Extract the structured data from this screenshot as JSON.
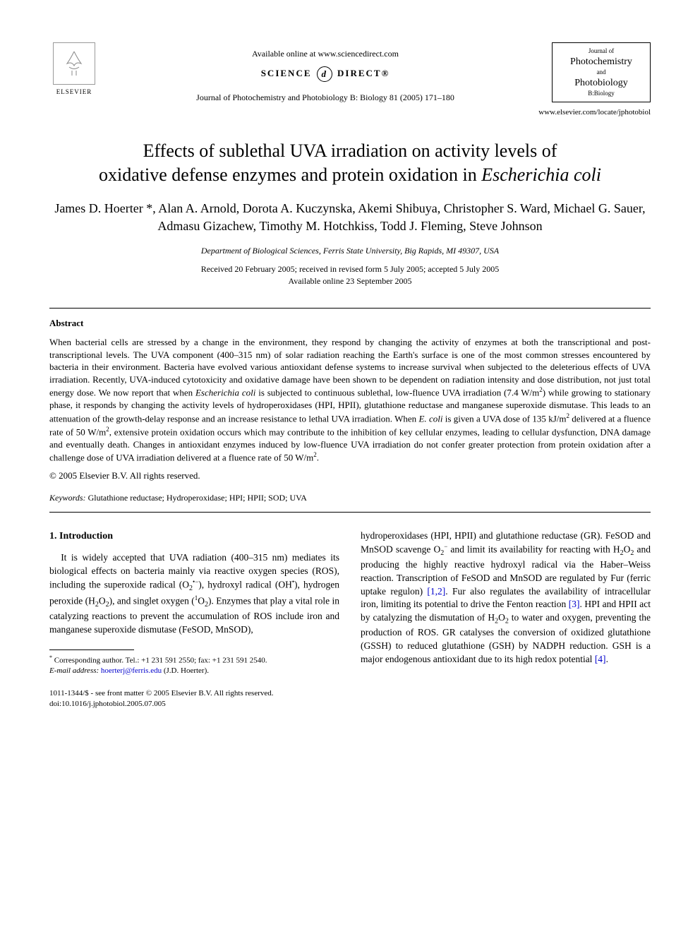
{
  "header": {
    "elsevier_label": "ELSEVIER",
    "available_online": "Available online at www.sciencedirect.com",
    "sciencedirect_left": "SCIENCE",
    "sciencedirect_right": "DIRECT®",
    "journal_reference": "Journal of Photochemistry and Photobiology B: Biology 81 (2005) 171–180",
    "journal_box": {
      "line1": "Journal of",
      "line2": "Photochemistry",
      "line3": "and",
      "line4": "Photobiology",
      "line5": "B:Biology"
    },
    "locate_url": "www.elsevier.com/locate/jphotobiol"
  },
  "title": {
    "line1": "Effects of sublethal UVA irradiation on activity levels of",
    "line2_a": "oxidative defense enzymes and protein oxidation in ",
    "line2_b_ital": "Escherichia coli"
  },
  "authors": "James D. Hoerter *, Alan A. Arnold, Dorota A. Kuczynska, Akemi Shibuya, Christopher S. Ward, Michael G. Sauer, Admasu Gizachew, Timothy M. Hotchkiss, Todd J. Fleming, Steve Johnson",
  "affiliation": "Department of Biological Sciences, Ferris State University, Big Rapids, MI 49307, USA",
  "dates": {
    "received": "Received 20 February 2005; received in revised form 5 July 2005; accepted 5 July 2005",
    "online": "Available online 23 September 2005"
  },
  "abstract_head": "Abstract",
  "abstract_body_html": "When bacterial cells are stressed by a change in the environment, they respond by changing the activity of enzymes at both the transcriptional and post-transcriptional levels. The UVA component (400–315 nm) of solar radiation reaching the Earth's surface is one of the most common stresses encountered by bacteria in their environment. Bacteria have evolved various antioxidant defense systems to increase survival when subjected to the deleterious effects of UVA irradiation. Recently, UVA-induced cytotoxicity and oxidative damage have been shown to be dependent on radiation intensity and dose distribution, not just total energy dose. We now report that when <span class='ital'>Escherichia coli</span> is subjected to continuous sublethal, low-fluence UVA irradiation (7.4 W/m<span class='sup'>2</span>) while growing to stationary phase, it responds by changing the activity levels of hydroperoxidases (HPI, HPII), glutathione reductase and manganese superoxide dismutase. This leads to an attenuation of the growth-delay response and an increase resistance to lethal UVA irradiation. When <span class='ital'>E. coli</span> is given a UVA dose of 135 kJ/m<span class='sup'>2</span> delivered at a fluence rate of 50 W/m<span class='sup'>2</span>, extensive protein oxidation occurs which may contribute to the inhibition of key cellular enzymes, leading to cellular dysfunction, DNA damage and eventually death. Changes in antioxidant enzymes induced by low-fluence UVA irradiation do not confer greater protection from protein oxidation after a challenge dose of UVA irradiation delivered at a fluence rate of 50 W/m<span class='sup'>2</span>.",
  "copyright": "© 2005 Elsevier B.V. All rights reserved.",
  "keywords_label": "Keywords:",
  "keywords": " Glutathione reductase; Hydroperoxidase; HPI; HPII; SOD; UVA",
  "section_head": "1. Introduction",
  "col_left_html": "It is widely accepted that UVA radiation (400–315 nm) mediates its biological effects on bacteria mainly via reactive oxygen species (ROS), including the superoxide radical (O<span class='sub'>2</span><span class='sup'>•−</span>), hydroxyl radical (OH<span class='sup'>•</span>), hydrogen peroxide (H<span class='sub'>2</span>O<span class='sub'>2</span>), and singlet oxygen (<span class='sup'>1</span>O<span class='sub'>2</span>). Enzymes that play a vital role in catalyzing reactions to prevent the accumulation of ROS include iron and manganese superoxide dismutase (FeSOD, MnSOD),",
  "col_right_html": "hydroperoxidases (HPI, HPII) and glutathione reductase (GR). FeSOD and MnSOD scavenge O<span class='sub'>2</span><span class='sup'>−</span> and limit its availability for reacting with H<span class='sub'>2</span>O<span class='sub'>2</span> and producing the highly reactive hydroxyl radical via the Haber–Weiss reaction. Transcription of FeSOD and MnSOD are regulated by Fur (ferric uptake regulon) <span class='cite'>[1,2]</span>. Fur also regulates the availability of intracellular iron, limiting its potential to drive the Fenton reaction <span class='cite'>[3]</span>. HPI and HPII act by catalyzing the dismutation of H<span class='sub'>2</span>O<span class='sub'>2</span> to water and oxygen, preventing the production of ROS. GR catalyses the conversion of oxidized glutathione (GSSH) to reduced glutathione (GSH) by NADPH reduction. GSH is a major endogenous antioxidant due to its high redox potential <span class='cite'>[4]</span>.",
  "footnote": {
    "corresponding": "Corresponding author. Tel.: +1 231 591 2550; fax: +1 231 591 2540.",
    "email_label": "E-mail address:",
    "email": "hoerterj@ferris.edu",
    "email_owner": "(J.D. Hoerter)."
  },
  "footer": {
    "front_matter": "1011-1344/$ - see front matter © 2005 Elsevier B.V. All rights reserved.",
    "doi": "doi:10.1016/j.jphotobiol.2005.07.005"
  }
}
